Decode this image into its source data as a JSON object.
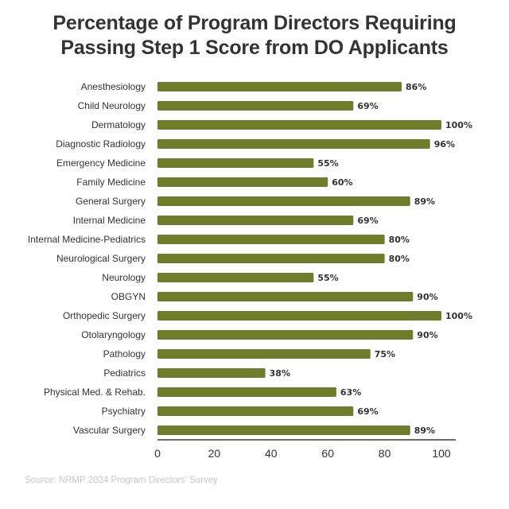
{
  "chart_data": {
    "type": "bar",
    "orientation": "horizontal",
    "title": "Percentage of Program Directors Requiring Passing Step 1 Score from DO Applicants",
    "title_lines": [
      "Percentage of Program Directors Requiring",
      "Passing Step 1 Score from DO Applicants"
    ],
    "categories": [
      "Anesthesiology",
      "Child Neurology",
      "Dermatology",
      "Diagnostic Radiology",
      "Emergency Medicine",
      "Family Medicine",
      "General Surgery",
      "Internal Medicine",
      "Internal Medicine-Pediatrics",
      "Neurological Surgery",
      "Neurology",
      "OBGYN",
      "Orthopedic Surgery",
      "Otolaryngology",
      "Pathology",
      "Pediatrics",
      "Physical Med. & Rehab.",
      "Psychiatry",
      "Vascular Surgery"
    ],
    "values": [
      86,
      69,
      100,
      96,
      55,
      60,
      89,
      69,
      80,
      80,
      55,
      90,
      100,
      90,
      75,
      38,
      63,
      69,
      89
    ],
    "value_labels": [
      "86%",
      "69%",
      "100%",
      "96%",
      "55%",
      "60%",
      "89%",
      "69%",
      "80%",
      "80%",
      "55%",
      "90%",
      "100%",
      "90%",
      "75%",
      "38%",
      "63%",
      "69%",
      "89%"
    ],
    "xlabel": "",
    "ylabel": "",
    "xlim": [
      0,
      105
    ],
    "xticks": [
      0,
      20,
      40,
      60,
      80,
      100
    ],
    "grid": false,
    "legend": "none",
    "bar_color": "#6e7c2b",
    "source": "Source: NRMP 2024 Program Directors' Survey"
  }
}
